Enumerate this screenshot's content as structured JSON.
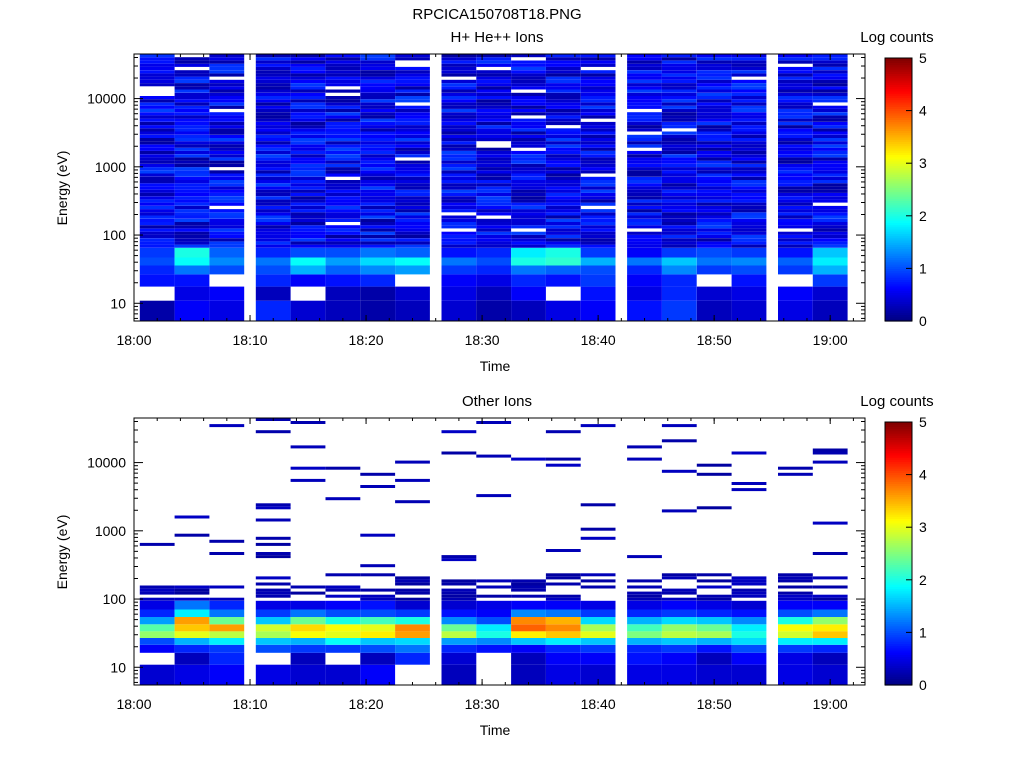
{
  "figure_title": "RPCICA150708T18.PNG",
  "colorbar": {
    "label": "Log counts",
    "ticks": [
      "0",
      "1",
      "2",
      "3",
      "4",
      "5"
    ],
    "range": [
      0,
      5
    ],
    "colormap": [
      "#00007f",
      "#0000ff",
      "#007fff",
      "#00ffff",
      "#7fff7f",
      "#ffff00",
      "#ff7f00",
      "#ff0000",
      "#7f0000"
    ]
  },
  "chart_data": [
    {
      "type": "heatmap",
      "title": "H+ He++ Ions",
      "xlabel": "Time",
      "ylabel": "Energy (eV)",
      "x_scale": "time",
      "y_scale": "log",
      "xlim": [
        "18:00",
        "19:03"
      ],
      "ylim": [
        5.5,
        45000
      ],
      "xticks": [
        "18:00",
        "18:10",
        "18:20",
        "18:30",
        "18:40",
        "18:50",
        "19:00"
      ],
      "yticks": [
        "10",
        "100",
        "1000",
        "10000"
      ],
      "time_bins": [
        "18:02",
        "18:05",
        "18:08",
        "18:12",
        "18:15",
        "18:18",
        "18:21",
        "18:24",
        "18:28",
        "18:31",
        "18:34",
        "18:37",
        "18:40",
        "18:44",
        "18:47",
        "18:50",
        "18:53",
        "18:57",
        "19:00"
      ],
      "energy_bands": [
        {
          "energy_eV": 8.5,
          "values": [
            0.2,
            0.6,
            0.5,
            0.8,
            0.4,
            0.3,
            0.2,
            0.3,
            0.4,
            0.2,
            0.3,
            0.5,
            0.6,
            0.7,
            0.9,
            0.3,
            0.4,
            0.5,
            0.3
          ]
        },
        {
          "energy_eV": 14,
          "values": [
            null,
            0.5,
            0.6,
            0.3,
            null,
            0.3,
            0.2,
            0.4,
            0.5,
            0.3,
            0.6,
            null,
            0.7,
            0.5,
            0.8,
            0.4,
            0.5,
            0.6,
            0.4
          ]
        },
        {
          "energy_eV": 22,
          "values": [
            0.7,
            0.7,
            null,
            0.8,
            0.6,
            0.7,
            0.8,
            null,
            0.6,
            0.5,
            0.8,
            0.7,
            0.9,
            0.6,
            0.8,
            null,
            0.7,
            null,
            0.9
          ]
        },
        {
          "energy_eV": 32,
          "values": [
            0.8,
            1.2,
            1.0,
            1.0,
            1.5,
            1.1,
            1.3,
            1.4,
            0.9,
            0.8,
            1.2,
            1.1,
            1.0,
            0.8,
            1.3,
            0.9,
            1.0,
            0.9,
            1.5
          ]
        },
        {
          "energy_eV": 40,
          "values": [
            1.0,
            1.9,
            1.3,
            1.2,
            1.9,
            1.4,
            1.7,
            1.9,
            1.2,
            1.0,
            2.0,
            2.1,
            1.5,
            1.2,
            1.6,
            1.2,
            1.3,
            1.1,
            1.8
          ]
        },
        {
          "energy_eV": 55,
          "values": [
            0.9,
            2.0,
            1.1,
            0.8,
            1.0,
            1.0,
            1.2,
            1.1,
            0.7,
            0.8,
            1.8,
            2.0,
            0.9,
            0.6,
            0.9,
            1.0,
            0.9,
            0.7,
            1.6
          ]
        }
      ],
      "background_level": 0.8
    },
    {
      "type": "heatmap",
      "title": "Other Ions",
      "xlabel": "Time",
      "ylabel": "Energy (eV)",
      "x_scale": "time",
      "y_scale": "log",
      "xlim": [
        "18:00",
        "19:03"
      ],
      "ylim": [
        5.5,
        45000
      ],
      "xticks": [
        "18:00",
        "18:10",
        "18:20",
        "18:30",
        "18:40",
        "18:50",
        "19:00"
      ],
      "yticks": [
        "10",
        "100",
        "1000",
        "10000"
      ],
      "time_bins": [
        "18:02",
        "18:05",
        "18:08",
        "18:12",
        "18:15",
        "18:18",
        "18:21",
        "18:24",
        "18:28",
        "18:31",
        "18:34",
        "18:37",
        "18:40",
        "18:44",
        "18:47",
        "18:50",
        "18:53",
        "18:57",
        "19:00"
      ],
      "energy_bands": [
        {
          "energy_eV": 8.5,
          "values": [
            0.4,
            0.5,
            0.6,
            0.5,
            0.4,
            0.4,
            0.6,
            null,
            0.3,
            null,
            0.3,
            0.5,
            0.4,
            0.5,
            0.5,
            0.4,
            0.4,
            0.5,
            0.4
          ]
        },
        {
          "energy_eV": 14,
          "values": [
            null,
            0.3,
            0.8,
            null,
            0.3,
            null,
            0.3,
            0.8,
            0.4,
            null,
            0.3,
            0.6,
            0.6,
            0.7,
            0.6,
            0.3,
            0.6,
            0.5,
            0.3
          ]
        },
        {
          "energy_eV": 19,
          "values": [
            0.6,
            0.8,
            0.9,
            1.0,
            0.9,
            0.9,
            1.0,
            1.2,
            0.8,
            0.7,
            0.6,
            0.8,
            0.9,
            0.8,
            0.9,
            0.7,
            1.0,
            0.9,
            0.8
          ]
        },
        {
          "energy_eV": 24,
          "values": [
            1.0,
            1.5,
            1.8,
            1.6,
            1.5,
            1.9,
            1.6,
            1.7,
            1.4,
            1.3,
            1.6,
            1.8,
            1.6,
            1.5,
            1.6,
            1.5,
            1.7,
            1.8,
            1.8
          ]
        },
        {
          "energy_eV": 30,
          "values": [
            2.6,
            3.0,
            2.8,
            2.7,
            3.1,
            3.0,
            3.2,
            3.6,
            2.8,
            2.0,
            3.2,
            3.4,
            3.0,
            2.5,
            2.8,
            2.7,
            2.0,
            2.9,
            3.4
          ]
        },
        {
          "energy_eV": 38,
          "values": [
            2.3,
            3.4,
            3.6,
            2.9,
            3.3,
            3.1,
            3.0,
            3.7,
            2.4,
            1.8,
            3.9,
            3.7,
            2.7,
            2.2,
            2.6,
            2.4,
            1.8,
            3.1,
            3.2
          ]
        },
        {
          "energy_eV": 48,
          "values": [
            1.4,
            3.6,
            2.4,
            1.6,
            2.4,
            2.0,
            2.2,
            2.0,
            1.3,
            1.0,
            3.7,
            3.5,
            1.7,
            1.5,
            1.7,
            1.6,
            1.3,
            2.0,
            2.6
          ]
        },
        {
          "energy_eV": 62,
          "values": [
            0.8,
            1.8,
            1.2,
            0.9,
            1.2,
            1.0,
            1.0,
            0.9,
            0.7,
            0.6,
            1.3,
            1.2,
            0.9,
            0.8,
            0.9,
            0.8,
            0.7,
            1.0,
            1.2
          ]
        },
        {
          "energy_eV": 80,
          "values": [
            0.5,
            1.2,
            0.8,
            0.5,
            0.5,
            0.6,
            0.7,
            0.4,
            0.4,
            0.5,
            0.6,
            0.6,
            0.5,
            0.5,
            0.6,
            0.5,
            0.4,
            0.6,
            0.6
          ]
        }
      ],
      "sparse_high_energy_counts": true
    }
  ]
}
